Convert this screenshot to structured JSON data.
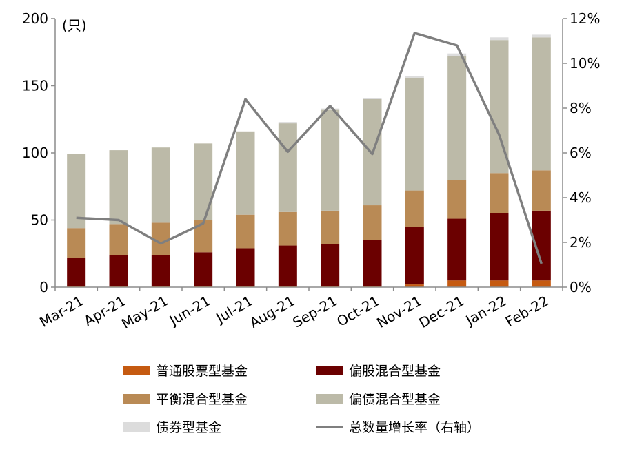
{
  "chart_data": {
    "type": "bar",
    "stacked": true,
    "unit_label": "(只)",
    "categories": [
      "Mar-21",
      "Apr-21",
      "May-21",
      "Jun-21",
      "Jul-21",
      "Aug-21",
      "Sep-21",
      "Oct-21",
      "Nov-21",
      "Dec-21",
      "Jan-22",
      "Feb-22"
    ],
    "y_left": {
      "min": 0,
      "max": 200,
      "ticks": [
        "0",
        "50",
        "100",
        "150",
        "200"
      ],
      "tick_values": [
        0,
        50,
        100,
        150,
        200
      ]
    },
    "y_right": {
      "min": 0,
      "max": 12,
      "ticks": [
        "0%",
        "2%",
        "4%",
        "6%",
        "8%",
        "10%",
        "12%"
      ],
      "tick_values": [
        0,
        2,
        4,
        6,
        8,
        10,
        12
      ]
    },
    "series": [
      {
        "name": "普通股票型基金",
        "kind": "bar",
        "axis": "left",
        "color": "#c55a11",
        "values": [
          1,
          1,
          1,
          1,
          1,
          1,
          1,
          1,
          2,
          5,
          5,
          5
        ]
      },
      {
        "name": "偏股混合型基金",
        "kind": "bar",
        "axis": "left",
        "color": "#6b0000",
        "values": [
          21,
          23,
          23,
          25,
          28,
          30,
          31,
          34,
          43,
          46,
          50,
          52
        ]
      },
      {
        "name": "平衡混合型基金",
        "kind": "bar",
        "axis": "left",
        "color": "#b98a55",
        "values": [
          22,
          23,
          24,
          24,
          25,
          25,
          25,
          26,
          27,
          29,
          30,
          30
        ]
      },
      {
        "name": "偏债混合型基金",
        "kind": "bar",
        "axis": "left",
        "color": "#bcbaa8",
        "values": [
          55,
          55,
          56,
          57,
          62,
          66,
          75,
          79,
          84,
          92,
          99,
          99
        ]
      },
      {
        "name": "债券型基金",
        "kind": "bar",
        "axis": "left",
        "color": "#dcdcdc",
        "values": [
          0,
          0,
          0,
          0,
          0,
          1,
          1,
          1,
          1,
          2,
          2,
          2
        ]
      },
      {
        "name": "总数量增长率（右轴）",
        "kind": "line",
        "axis": "right",
        "color": "#7f7f7f",
        "values": [
          3.1,
          3.0,
          1.95,
          2.85,
          8.4,
          6.05,
          8.1,
          5.95,
          11.35,
          10.8,
          6.8,
          1.05
        ]
      }
    ],
    "legend_position": "bottom",
    "grid": false
  }
}
